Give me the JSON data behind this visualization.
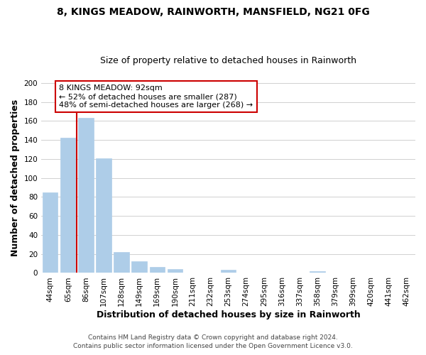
{
  "title": "8, KINGS MEADOW, RAINWORTH, MANSFIELD, NG21 0FG",
  "subtitle": "Size of property relative to detached houses in Rainworth",
  "xlabel": "Distribution of detached houses by size in Rainworth",
  "ylabel": "Number of detached properties",
  "bar_labels": [
    "44sqm",
    "65sqm",
    "86sqm",
    "107sqm",
    "128sqm",
    "149sqm",
    "169sqm",
    "190sqm",
    "211sqm",
    "232sqm",
    "253sqm",
    "274sqm",
    "295sqm",
    "316sqm",
    "337sqm",
    "358sqm",
    "379sqm",
    "399sqm",
    "420sqm",
    "441sqm",
    "462sqm"
  ],
  "bar_values": [
    85,
    142,
    163,
    121,
    22,
    12,
    6,
    4,
    0,
    0,
    3,
    0,
    0,
    0,
    0,
    2,
    0,
    0,
    0,
    0,
    0
  ],
  "bar_color": "#aecde8",
  "bar_edge_color": "#aecde8",
  "grid_color": "#d0d0d0",
  "vline_x_index": 2,
  "vline_color": "#cc0000",
  "annotation_line1": "8 KINGS MEADOW: 92sqm",
  "annotation_line2": "← 52% of detached houses are smaller (287)",
  "annotation_line3": "48% of semi-detached houses are larger (268) →",
  "annotation_box_color": "#ffffff",
  "annotation_box_edge": "#cc0000",
  "ylim": [
    0,
    200
  ],
  "yticks": [
    0,
    20,
    40,
    60,
    80,
    100,
    120,
    140,
    160,
    180,
    200
  ],
  "footer_line1": "Contains HM Land Registry data © Crown copyright and database right 2024.",
  "footer_line2": "Contains public sector information licensed under the Open Government Licence v3.0.",
  "title_fontsize": 10,
  "subtitle_fontsize": 9,
  "axis_label_fontsize": 9,
  "tick_fontsize": 7.5,
  "annotation_fontsize": 8,
  "footer_fontsize": 6.5
}
